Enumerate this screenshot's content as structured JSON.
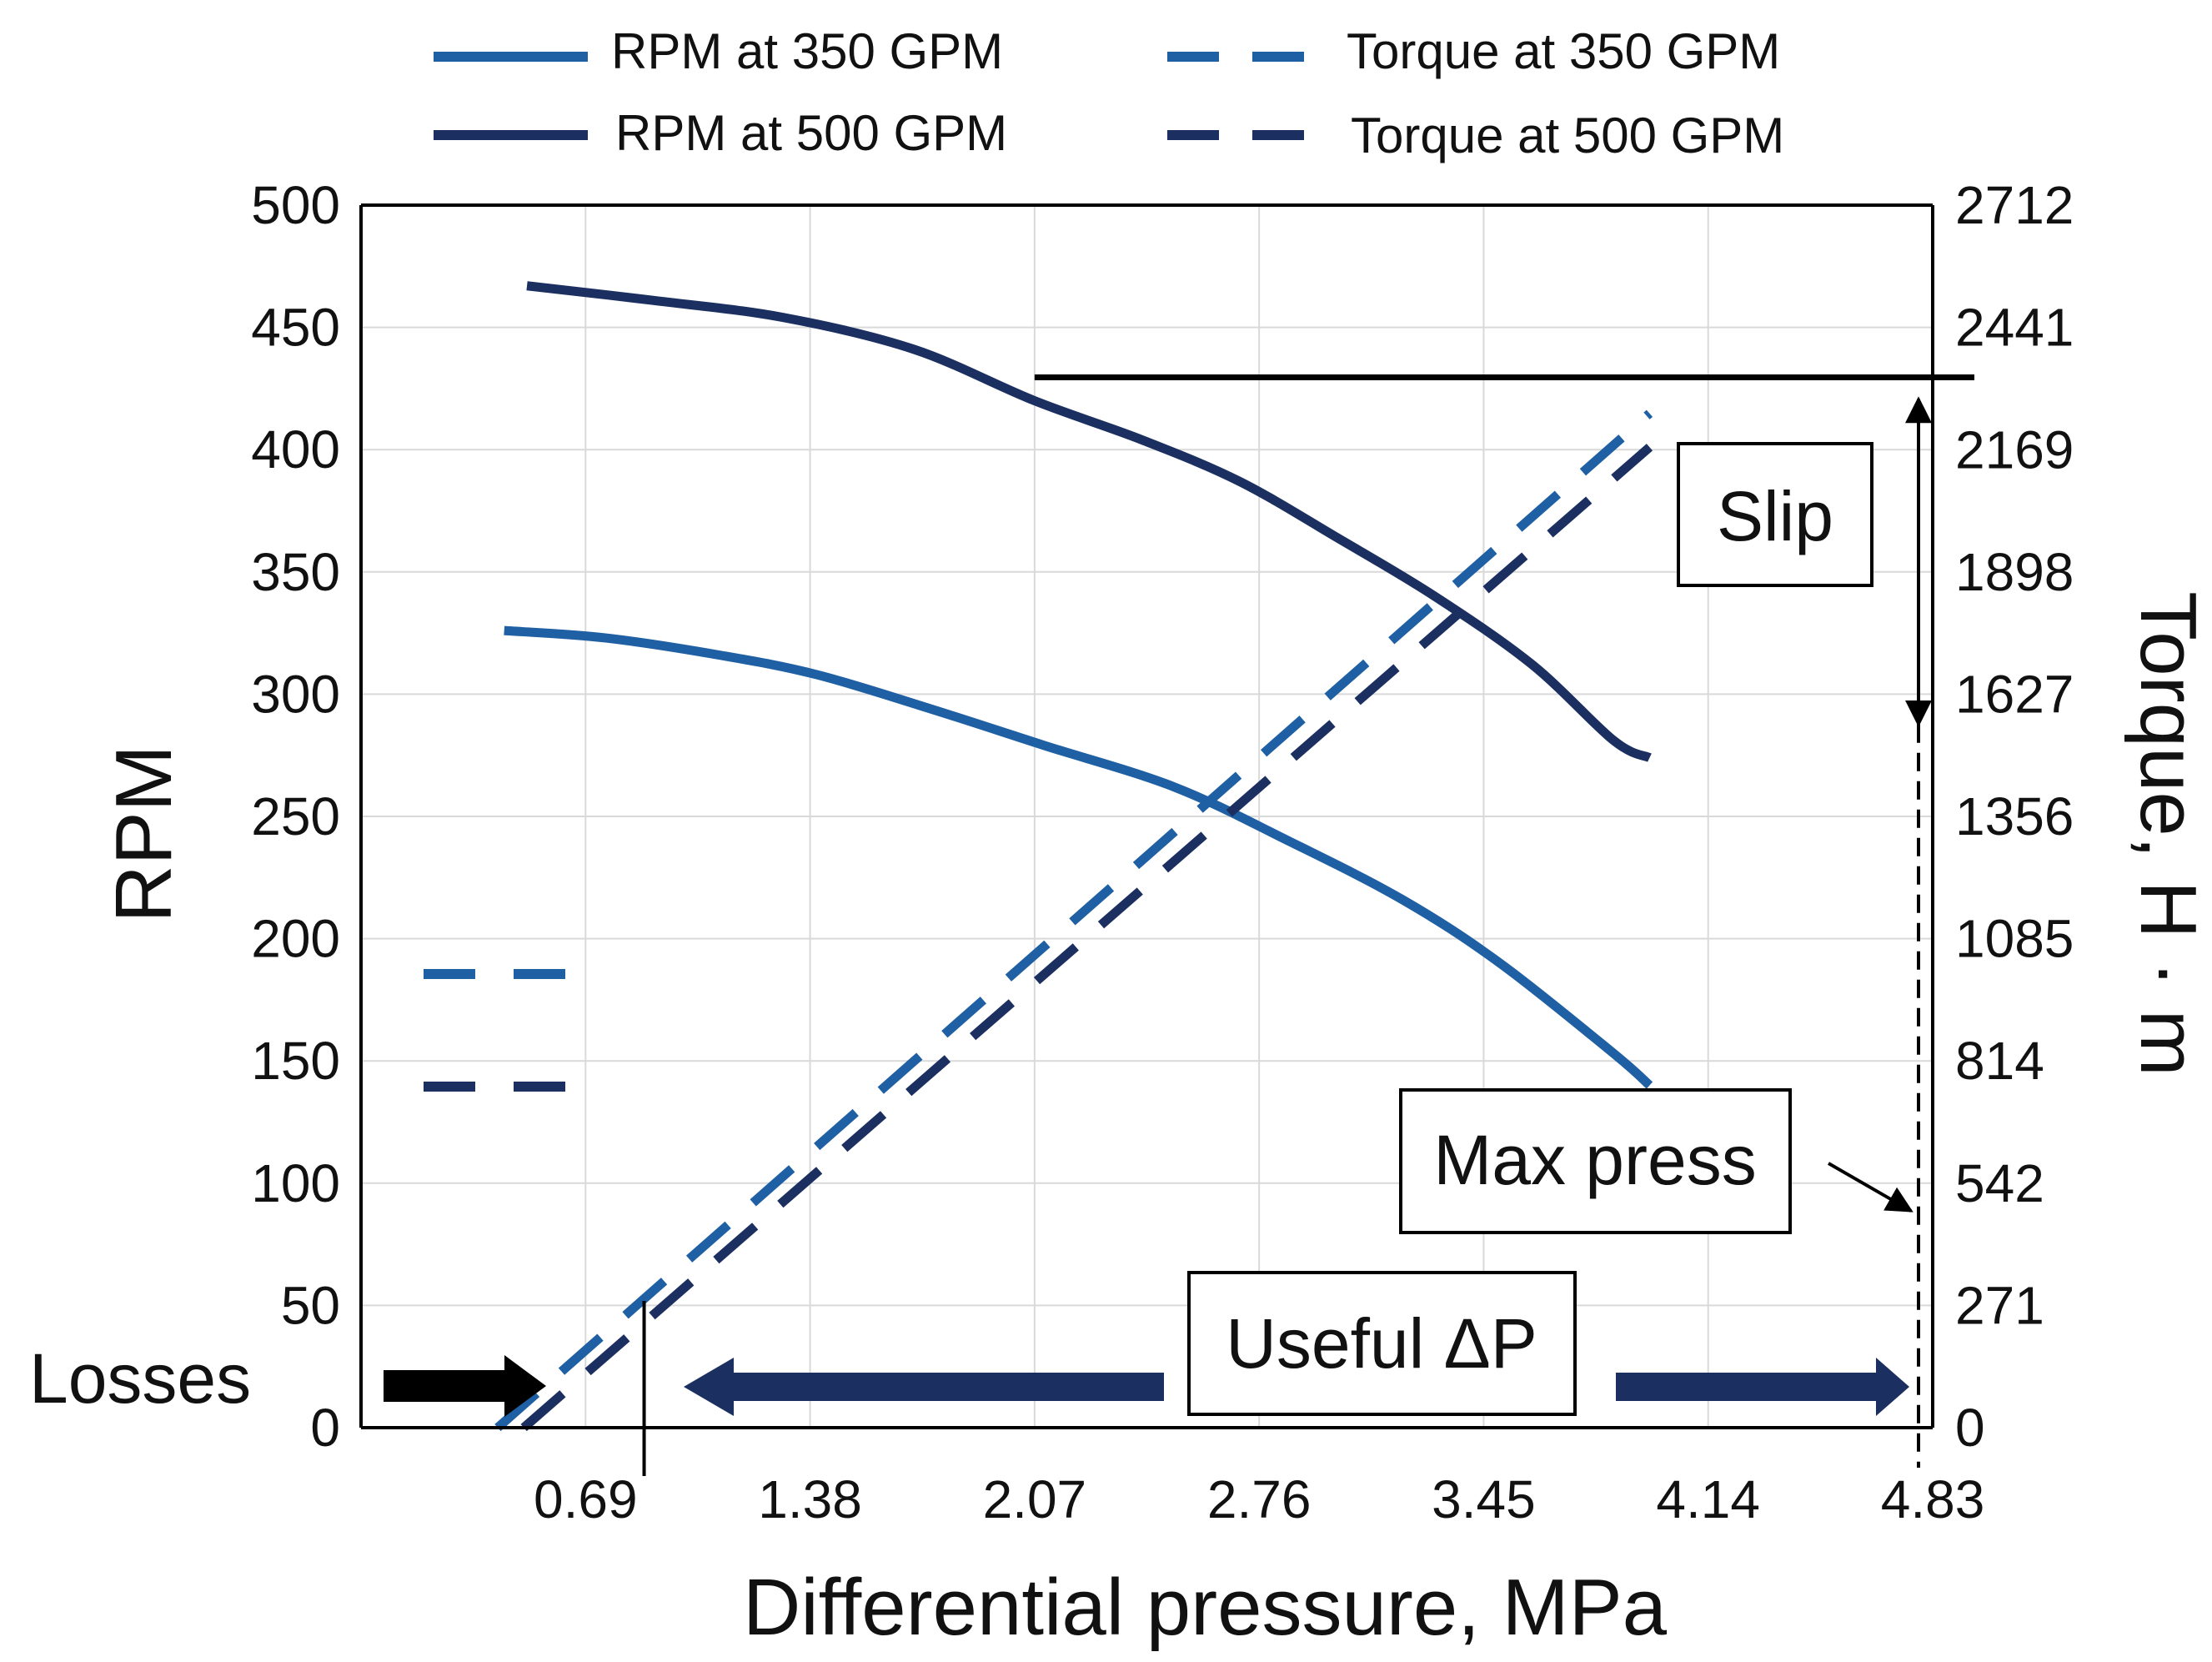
{
  "chart_data": {
    "type": "line",
    "xlabel": "Differential pressure, MPa",
    "ylabel": "RPM",
    "y2label": "Torque, H · m",
    "xlim": [
      0,
      4.83
    ],
    "ylim": [
      0,
      500
    ],
    "y2lim": [
      0,
      2712
    ],
    "grid": true,
    "x_ticks": [
      "0.69",
      "1.38",
      "2.07",
      "2.76",
      "3.45",
      "4.14",
      "4.83"
    ],
    "x_tick_values": [
      0.69,
      1.38,
      2.07,
      2.76,
      3.45,
      4.14,
      4.83
    ],
    "y_ticks": [
      "0",
      "50",
      "100",
      "150",
      "200",
      "250",
      "300",
      "350",
      "400",
      "450",
      "500"
    ],
    "y_tick_values": [
      0,
      50,
      100,
      150,
      200,
      250,
      300,
      350,
      400,
      450,
      500
    ],
    "y2_ticks": [
      "0",
      "271",
      "542",
      "814",
      "1085",
      "1356",
      "1627",
      "1898",
      "2169",
      "2441",
      "2712"
    ],
    "y2_tick_values": [
      0,
      271,
      542,
      814,
      1085,
      1356,
      1627,
      1898,
      2169,
      2441,
      2712
    ],
    "series": [
      {
        "name": "RPM at 350 GPM",
        "axis": "left",
        "style": "solid",
        "color": "#1f5fa3",
        "x": [
          0.44,
          0.75,
          1.1,
          1.4,
          1.75,
          2.1,
          2.5,
          2.85,
          3.2,
          3.5,
          3.85,
          3.96
        ],
        "y": [
          326,
          323,
          316,
          308,
          294,
          279,
          262,
          240,
          216,
          190,
          153,
          140
        ]
      },
      {
        "name": "RPM at 500 GPM",
        "axis": "left",
        "style": "solid",
        "color": "#1b2f60",
        "x": [
          0.51,
          0.9,
          1.3,
          1.7,
          2.07,
          2.4,
          2.7,
          3.0,
          3.3,
          3.6,
          3.85,
          3.96
        ],
        "y": [
          467,
          461,
          454,
          441,
          420,
          404,
          387,
          364,
          340,
          312,
          281,
          274
        ]
      },
      {
        "name": "Torque at 350 GPM",
        "axis": "right",
        "style": "dashed",
        "color": "#1f5fa3",
        "x": [
          0.42,
          3.96
        ],
        "y": [
          0,
          2250
        ]
      },
      {
        "name": "Torque at 500 GPM",
        "axis": "right",
        "style": "dashed",
        "color": "#1b2f60",
        "x": [
          0.5,
          3.96
        ],
        "y": [
          0,
          2175
        ]
      }
    ],
    "legend_position": "top",
    "annotations": {
      "slip": "Slip",
      "max_press": "Max press",
      "useful_dp": "Useful ΔP",
      "losses": "Losses"
    },
    "reference_lines": {
      "slip_top_torque": 2330,
      "slip_bottom_torque": 1560,
      "slip_line_x_start": 2.07,
      "losses_marker_x": 0.87,
      "max_pressure_x": 4.83
    }
  }
}
